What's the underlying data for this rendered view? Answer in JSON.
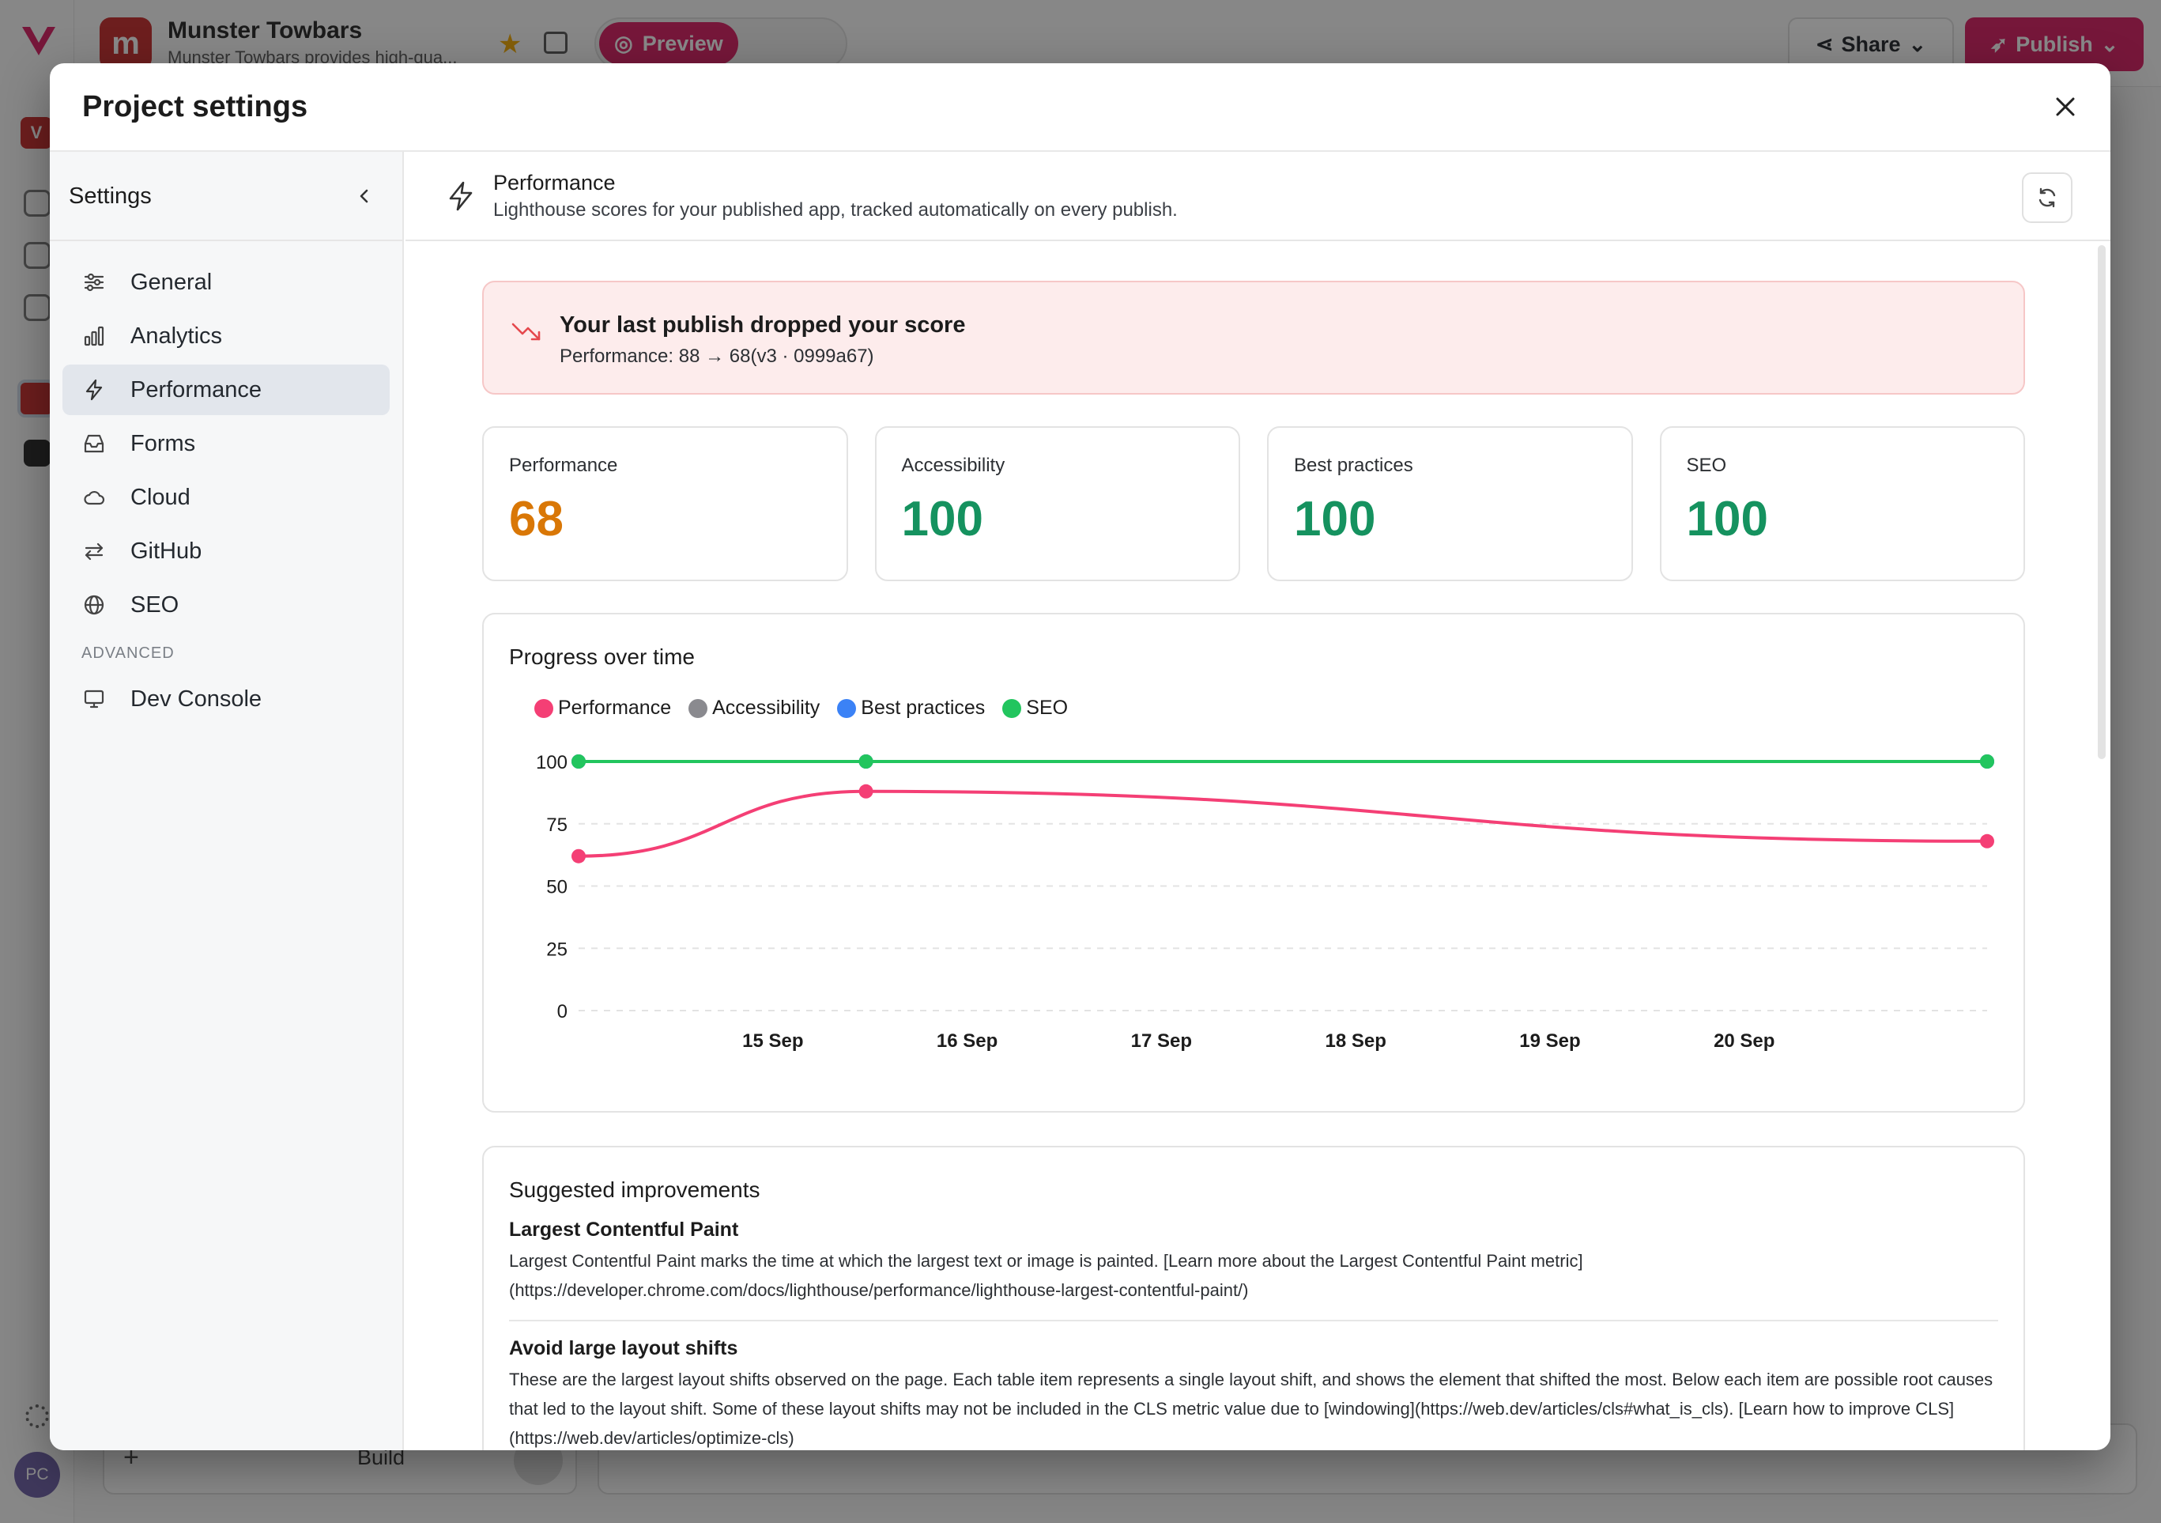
{
  "background": {
    "project_name": "Munster Towbars",
    "project_description": "Munster Towbars provides high-qua...",
    "workspace_badge": "V",
    "preview_label": "Preview",
    "share_label": "Share",
    "publish_label": "Publish",
    "composer_mode": "Build",
    "avatar_initials": "PC"
  },
  "modal": {
    "title": "Project settings"
  },
  "sidebar": {
    "title": "Settings",
    "items": [
      {
        "label": "General",
        "icon": "sliders-icon"
      },
      {
        "label": "Analytics",
        "icon": "bar-chart-icon"
      },
      {
        "label": "Performance",
        "icon": "lightning-icon",
        "active": true
      },
      {
        "label": "Forms",
        "icon": "inbox-icon"
      },
      {
        "label": "Cloud",
        "icon": "cloud-icon"
      },
      {
        "label": "GitHub",
        "icon": "arrows-swap-icon"
      },
      {
        "label": "SEO",
        "icon": "globe-icon"
      }
    ],
    "advanced_section": "ADVANCED",
    "advanced_items": [
      {
        "label": "Dev Console",
        "icon": "monitor-icon"
      }
    ]
  },
  "page": {
    "title": "Performance",
    "subtitle": "Lighthouse scores for your published app, tracked automatically on every publish."
  },
  "alert": {
    "title": "Your last publish dropped your score",
    "text": "Performance: 88 → 68(v3 · 0999a67)"
  },
  "scores": [
    {
      "label": "Performance",
      "value": "68",
      "color": "#d97706"
    },
    {
      "label": "Accessibility",
      "value": "100",
      "color": "#15925f"
    },
    {
      "label": "Best practices",
      "value": "100",
      "color": "#15925f"
    },
    {
      "label": "SEO",
      "value": "100",
      "color": "#15925f"
    }
  ],
  "chart_title": "Progress over time",
  "chart_data": {
    "type": "line",
    "x": [
      "14 Sep",
      "15 Sep",
      "16 Sep",
      "17 Sep",
      "18 Sep",
      "19 Sep",
      "20 Sep",
      "21 Sep"
    ],
    "x_tick_labels": [
      "15 Sep",
      "16 Sep",
      "17 Sep",
      "18 Sep",
      "19 Sep",
      "20 Sep"
    ],
    "ylim": [
      0,
      100
    ],
    "y_ticks": [
      0,
      25,
      50,
      75,
      100
    ],
    "grid": true,
    "legend_position": "top-left",
    "series": [
      {
        "name": "Performance",
        "color": "#f43f75",
        "points": [
          {
            "x": "14 Sep 12:00",
            "y": 62
          },
          {
            "x": "15 Sep 23:30",
            "y": 88
          },
          {
            "x": "21 Sep 18:00",
            "y": 68
          }
        ]
      },
      {
        "name": "Accessibility",
        "color": "#8a8a8f",
        "points": [
          {
            "x": "14 Sep 12:00",
            "y": 100
          },
          {
            "x": "15 Sep 23:30",
            "y": 100
          },
          {
            "x": "21 Sep 18:00",
            "y": 100
          }
        ]
      },
      {
        "name": "Best practices",
        "color": "#3b82f6",
        "points": [
          {
            "x": "14 Sep 12:00",
            "y": 100
          },
          {
            "x": "15 Sep 23:30",
            "y": 100
          },
          {
            "x": "21 Sep 18:00",
            "y": 100
          }
        ]
      },
      {
        "name": "SEO",
        "color": "#22c55e",
        "points": [
          {
            "x": "14 Sep 12:00",
            "y": 100
          },
          {
            "x": "15 Sep 23:30",
            "y": 100
          },
          {
            "x": "21 Sep 18:00",
            "y": 100
          }
        ]
      }
    ]
  },
  "suggestions": {
    "title": "Suggested improvements",
    "items": [
      {
        "title": "Largest Contentful Paint",
        "text": "Largest Contentful Paint marks the time at which the largest text or image is painted. [Learn more about the Largest Contentful Paint metric](https://developer.chrome.com/docs/lighthouse/performance/lighthouse-largest-contentful-paint/)"
      },
      {
        "title": "Avoid large layout shifts",
        "text": "These are the largest layout shifts observed on the page. Each table item represents a single layout shift, and shows the element that shifted the most. Below each item are possible root causes that led to the layout shift. Some of these layout shifts may not be included in the CLS metric value due to [windowing](https://web.dev/articles/cls#what_is_cls). [Learn how to improve CLS](https://web.dev/articles/optimize-cls)"
      }
    ]
  }
}
